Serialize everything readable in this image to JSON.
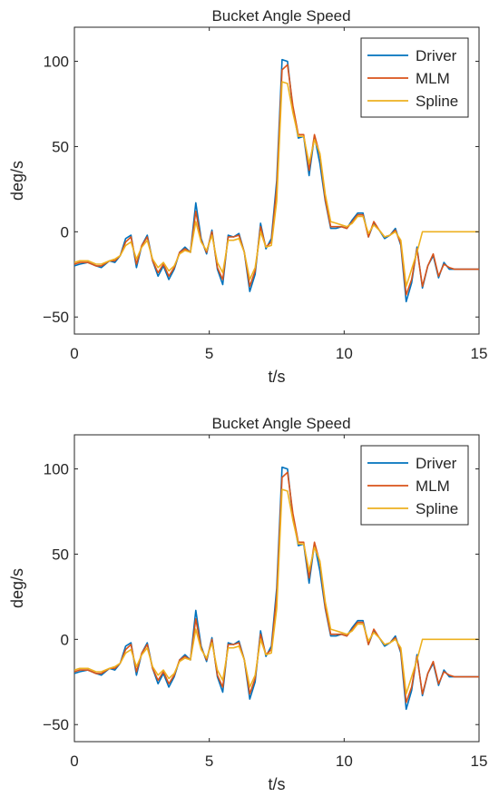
{
  "chart_data": [
    {
      "type": "line",
      "title": "Bucket Angle Speed",
      "xlabel": "t/s",
      "ylabel": "deg/s",
      "xlim": [
        0,
        15
      ],
      "ylim": [
        -60,
        120
      ],
      "xticks": [
        0,
        5,
        10,
        15
      ],
      "yticks": [
        -50,
        0,
        50,
        100
      ],
      "xtick_labels": [
        "0",
        "5",
        "10",
        "15"
      ],
      "ytick_labels": [
        "−50",
        "0",
        "50",
        "100"
      ],
      "grid": false,
      "legend": "top-right",
      "series": [
        {
          "name": "Driver",
          "color": "#0072BD",
          "x": [
            0,
            0.2,
            0.5,
            0.8,
            1.0,
            1.3,
            1.5,
            1.7,
            1.9,
            2.1,
            2.3,
            2.5,
            2.7,
            2.9,
            3.1,
            3.3,
            3.5,
            3.7,
            3.9,
            4.1,
            4.3,
            4.5,
            4.7,
            4.9,
            5.1,
            5.3,
            5.5,
            5.7,
            5.9,
            6.1,
            6.3,
            6.5,
            6.7,
            6.9,
            7.1,
            7.3,
            7.5,
            7.7,
            7.9,
            8.1,
            8.3,
            8.5,
            8.7,
            8.9,
            9.1,
            9.3,
            9.5,
            9.7,
            9.9,
            10.1,
            10.3,
            10.5,
            10.7,
            10.9,
            11.1,
            11.3,
            11.5,
            11.7,
            11.9,
            12.1,
            12.3,
            12.5,
            12.7,
            12.9,
            13.1,
            13.3,
            13.5,
            13.7,
            13.9,
            14.1,
            14.3,
            14.5,
            14.7,
            14.9,
            15.0
          ],
          "y": [
            -20,
            -19,
            -18,
            -20,
            -21,
            -17,
            -18,
            -14,
            -4,
            -2,
            -21,
            -8,
            -2,
            -17,
            -26,
            -20,
            -28,
            -22,
            -12,
            -9,
            -12,
            17,
            -4,
            -13,
            1,
            -22,
            -31,
            -2,
            -3,
            -1,
            -12,
            -35,
            -25,
            5,
            -10,
            -4,
            30,
            101,
            100,
            72,
            55,
            56,
            33,
            56,
            40,
            18,
            2,
            2,
            3,
            2,
            7,
            11,
            11,
            -3,
            5,
            1,
            -4,
            -2,
            2,
            -8,
            -41,
            -30,
            -9,
            -33,
            -20,
            -14,
            -27,
            -18,
            -22,
            -22,
            -22,
            -22,
            -22,
            -22,
            -22
          ]
        },
        {
          "name": "MLM",
          "color": "#D95319",
          "x": [
            0,
            0.2,
            0.5,
            0.8,
            1.0,
            1.3,
            1.5,
            1.7,
            1.9,
            2.1,
            2.3,
            2.5,
            2.7,
            2.9,
            3.1,
            3.3,
            3.5,
            3.7,
            3.9,
            4.1,
            4.3,
            4.5,
            4.7,
            4.9,
            5.1,
            5.3,
            5.5,
            5.7,
            5.9,
            6.1,
            6.3,
            6.5,
            6.7,
            6.9,
            7.1,
            7.3,
            7.5,
            7.7,
            7.9,
            8.1,
            8.3,
            8.5,
            8.7,
            8.9,
            9.1,
            9.3,
            9.5,
            9.7,
            9.9,
            10.1,
            10.3,
            10.5,
            10.7,
            10.9,
            11.1,
            11.3,
            11.5,
            11.7,
            11.9,
            12.1,
            12.3,
            12.5,
            12.7,
            12.9,
            13.1,
            13.3,
            13.5,
            13.7,
            13.9,
            14.1,
            14.3,
            14.5,
            14.7,
            14.9,
            15.0
          ],
          "y": [
            -19,
            -18,
            -18,
            -20,
            -20,
            -17,
            -17,
            -14,
            -6,
            -3,
            -19,
            -8,
            -3,
            -17,
            -24,
            -19,
            -26,
            -21,
            -12,
            -10,
            -12,
            12,
            -5,
            -12,
            0,
            -21,
            -28,
            -3,
            -3,
            -2,
            -12,
            -32,
            -23,
            3,
            -9,
            -6,
            26,
            95,
            98,
            74,
            57,
            57,
            36,
            57,
            45,
            19,
            3,
            3,
            3,
            2,
            6,
            10,
            10,
            -3,
            6,
            1,
            -3,
            -2,
            1,
            -7,
            -37,
            -28,
            -10,
            -32,
            -20,
            -13,
            -26,
            -19,
            -21,
            -22,
            -22,
            -22,
            -22,
            -22,
            -22
          ]
        },
        {
          "name": "Spline",
          "color": "#EDB120",
          "x": [
            0,
            0.2,
            0.5,
            0.8,
            1.0,
            1.3,
            1.5,
            1.7,
            1.9,
            2.1,
            2.3,
            2.5,
            2.7,
            2.9,
            3.1,
            3.3,
            3.5,
            3.7,
            3.9,
            4.1,
            4.3,
            4.5,
            4.7,
            4.9,
            5.1,
            5.3,
            5.5,
            5.7,
            5.9,
            6.1,
            6.3,
            6.5,
            6.7,
            6.9,
            7.1,
            7.3,
            7.5,
            7.7,
            7.9,
            8.1,
            8.3,
            8.5,
            8.7,
            8.9,
            9.1,
            9.3,
            9.5,
            9.7,
            9.9,
            10.1,
            10.3,
            10.5,
            10.7,
            10.9,
            11.1,
            11.3,
            11.5,
            11.7,
            11.9,
            12.1,
            12.3,
            12.5,
            12.7,
            12.9,
            13.1,
            13.3,
            13.5,
            13.7,
            13.9,
            14.1,
            14.3,
            14.5,
            14.7,
            14.9,
            15.0
          ],
          "y": [
            -18,
            -17,
            -17,
            -19,
            -19,
            -17,
            -16,
            -14,
            -8,
            -6,
            -16,
            -9,
            -5,
            -16,
            -21,
            -18,
            -23,
            -20,
            -13,
            -11,
            -12,
            6,
            -6,
            -11,
            -2,
            -18,
            -24,
            -5,
            -5,
            -4,
            -12,
            -28,
            -21,
            0,
            -9,
            -8,
            18,
            88,
            87,
            70,
            56,
            56,
            40,
            54,
            46,
            22,
            6,
            5,
            4,
            3,
            5,
            9,
            9,
            -1,
            4,
            1,
            -3,
            -2,
            0,
            -5,
            -32,
            -22,
            -12,
            0,
            0,
            0,
            0,
            0,
            0,
            0,
            0,
            0,
            0,
            0,
            0
          ]
        }
      ]
    },
    {
      "type": "line",
      "title": "Bucket Angle Speed",
      "xlabel": "t/s",
      "ylabel": "deg/s",
      "xlim": [
        0,
        15
      ],
      "ylim": [
        -60,
        120
      ],
      "xticks": [
        0,
        5,
        10,
        15
      ],
      "yticks": [
        -50,
        0,
        50,
        100
      ],
      "xtick_labels": [
        "0",
        "5",
        "10",
        "15"
      ],
      "ytick_labels": [
        "−50",
        "0",
        "50",
        "100"
      ],
      "grid": false,
      "legend": "top-right",
      "series": [
        {
          "name": "Driver",
          "color": "#0072BD",
          "x": [
            0,
            0.2,
            0.5,
            0.8,
            1.0,
            1.3,
            1.5,
            1.7,
            1.9,
            2.1,
            2.3,
            2.5,
            2.7,
            2.9,
            3.1,
            3.3,
            3.5,
            3.7,
            3.9,
            4.1,
            4.3,
            4.5,
            4.7,
            4.9,
            5.1,
            5.3,
            5.5,
            5.7,
            5.9,
            6.1,
            6.3,
            6.5,
            6.7,
            6.9,
            7.1,
            7.3,
            7.5,
            7.7,
            7.9,
            8.1,
            8.3,
            8.5,
            8.7,
            8.9,
            9.1,
            9.3,
            9.5,
            9.7,
            9.9,
            10.1,
            10.3,
            10.5,
            10.7,
            10.9,
            11.1,
            11.3,
            11.5,
            11.7,
            11.9,
            12.1,
            12.3,
            12.5,
            12.7,
            12.9,
            13.1,
            13.3,
            13.5,
            13.7,
            13.9,
            14.1,
            14.3,
            14.5,
            14.7,
            14.9,
            15.0
          ],
          "y": [
            -20,
            -19,
            -18,
            -20,
            -21,
            -17,
            -18,
            -14,
            -4,
            -2,
            -21,
            -8,
            -2,
            -17,
            -26,
            -20,
            -28,
            -22,
            -12,
            -9,
            -12,
            17,
            -4,
            -13,
            1,
            -22,
            -31,
            -2,
            -3,
            -1,
            -12,
            -35,
            -25,
            5,
            -10,
            -4,
            30,
            101,
            100,
            72,
            55,
            56,
            33,
            56,
            40,
            18,
            2,
            2,
            3,
            2,
            7,
            11,
            11,
            -3,
            5,
            1,
            -4,
            -2,
            2,
            -8,
            -41,
            -30,
            -9,
            -33,
            -20,
            -14,
            -27,
            -18,
            -22,
            -22,
            -22,
            -22,
            -22,
            -22,
            -22
          ]
        },
        {
          "name": "MLM",
          "color": "#D95319",
          "x": [
            0,
            0.2,
            0.5,
            0.8,
            1.0,
            1.3,
            1.5,
            1.7,
            1.9,
            2.1,
            2.3,
            2.5,
            2.7,
            2.9,
            3.1,
            3.3,
            3.5,
            3.7,
            3.9,
            4.1,
            4.3,
            4.5,
            4.7,
            4.9,
            5.1,
            5.3,
            5.5,
            5.7,
            5.9,
            6.1,
            6.3,
            6.5,
            6.7,
            6.9,
            7.1,
            7.3,
            7.5,
            7.7,
            7.9,
            8.1,
            8.3,
            8.5,
            8.7,
            8.9,
            9.1,
            9.3,
            9.5,
            9.7,
            9.9,
            10.1,
            10.3,
            10.5,
            10.7,
            10.9,
            11.1,
            11.3,
            11.5,
            11.7,
            11.9,
            12.1,
            12.3,
            12.5,
            12.7,
            12.9,
            13.1,
            13.3,
            13.5,
            13.7,
            13.9,
            14.1,
            14.3,
            14.5,
            14.7,
            14.9,
            15.0
          ],
          "y": [
            -19,
            -18,
            -18,
            -20,
            -20,
            -17,
            -17,
            -14,
            -6,
            -3,
            -19,
            -8,
            -3,
            -17,
            -24,
            -19,
            -26,
            -21,
            -12,
            -10,
            -12,
            12,
            -5,
            -12,
            0,
            -21,
            -28,
            -3,
            -3,
            -2,
            -12,
            -32,
            -23,
            3,
            -9,
            -6,
            26,
            95,
            98,
            74,
            57,
            57,
            36,
            57,
            45,
            19,
            3,
            3,
            3,
            2,
            6,
            10,
            10,
            -3,
            6,
            1,
            -3,
            -2,
            1,
            -7,
            -37,
            -28,
            -10,
            -32,
            -20,
            -13,
            -26,
            -19,
            -21,
            -22,
            -22,
            -22,
            -22,
            -22,
            -22
          ]
        },
        {
          "name": "Spline",
          "color": "#EDB120",
          "x": [
            0,
            0.2,
            0.5,
            0.8,
            1.0,
            1.3,
            1.5,
            1.7,
            1.9,
            2.1,
            2.3,
            2.5,
            2.7,
            2.9,
            3.1,
            3.3,
            3.5,
            3.7,
            3.9,
            4.1,
            4.3,
            4.5,
            4.7,
            4.9,
            5.1,
            5.3,
            5.5,
            5.7,
            5.9,
            6.1,
            6.3,
            6.5,
            6.7,
            6.9,
            7.1,
            7.3,
            7.5,
            7.7,
            7.9,
            8.1,
            8.3,
            8.5,
            8.7,
            8.9,
            9.1,
            9.3,
            9.5,
            9.7,
            9.9,
            10.1,
            10.3,
            10.5,
            10.7,
            10.9,
            11.1,
            11.3,
            11.5,
            11.7,
            11.9,
            12.1,
            12.3,
            12.5,
            12.7,
            12.9,
            13.1,
            13.3,
            13.5,
            13.7,
            13.9,
            14.1,
            14.3,
            14.5,
            14.7,
            14.9,
            15.0
          ],
          "y": [
            -18,
            -17,
            -17,
            -19,
            -19,
            -17,
            -16,
            -14,
            -8,
            -6,
            -16,
            -9,
            -5,
            -16,
            -21,
            -18,
            -23,
            -20,
            -13,
            -11,
            -12,
            6,
            -6,
            -11,
            -2,
            -18,
            -24,
            -5,
            -5,
            -4,
            -12,
            -28,
            -21,
            0,
            -9,
            -8,
            18,
            88,
            87,
            70,
            56,
            56,
            40,
            54,
            46,
            22,
            6,
            5,
            4,
            3,
            5,
            9,
            9,
            -1,
            4,
            1,
            -3,
            -2,
            0,
            -5,
            -32,
            -22,
            -12,
            0,
            0,
            0,
            0,
            0,
            0,
            0,
            0,
            0,
            0,
            0,
            0
          ]
        }
      ]
    }
  ]
}
